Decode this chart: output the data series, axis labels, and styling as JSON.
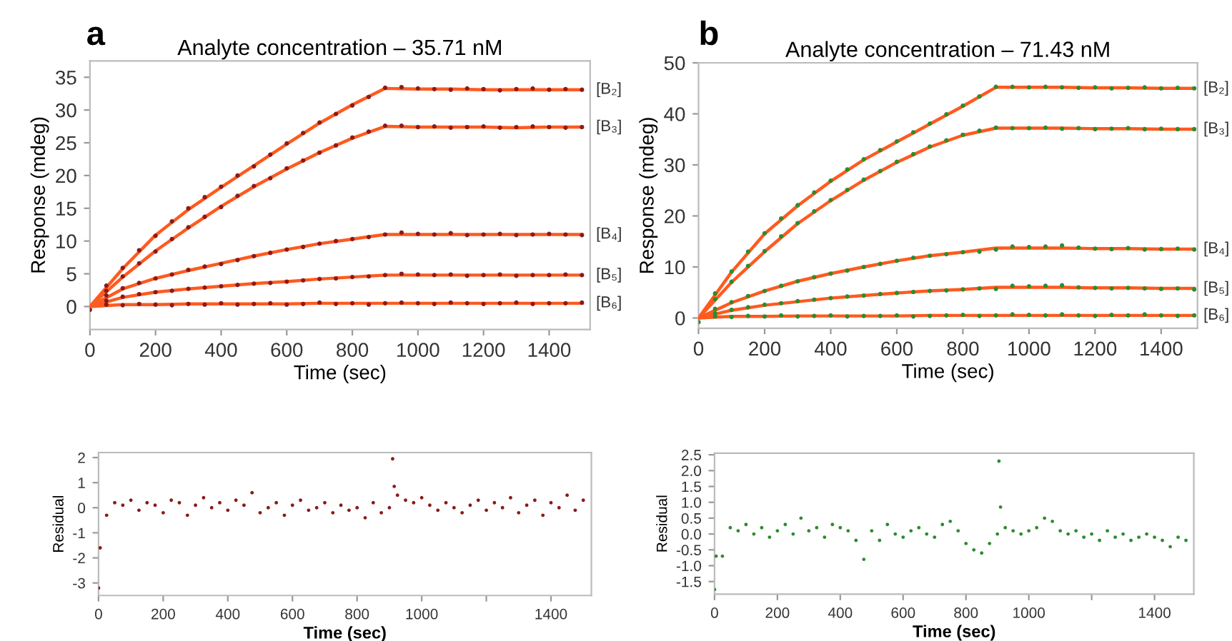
{
  "chart_data": [
    {
      "type": "line",
      "title": "Analyte concentration – 35.71 nM",
      "xlabel": "Time (sec)",
      "ylabel": "Response (mdeg)",
      "annotations": [
        "a"
      ],
      "xlim": [
        0,
        1525
      ],
      "ylim": [
        -3.5,
        37.5
      ],
      "xticks": [
        0,
        200,
        400,
        600,
        800,
        1000,
        1200,
        1400
      ],
      "yticks": [
        0,
        5,
        10,
        15,
        20,
        25,
        30,
        35
      ],
      "series": [
        {
          "type": "scatter",
          "color": "#8b1a1a",
          "x": [
            50,
            100,
            150,
            200,
            250,
            300,
            350,
            400,
            450,
            500,
            550,
            600,
            650,
            700,
            750,
            800,
            850,
            900,
            950,
            1000,
            1050,
            1100,
            1150,
            1200,
            1250,
            1300,
            1350,
            1400,
            1450,
            1500
          ],
          "values": [
            3.2,
            5.9,
            8.6,
            10.8,
            13,
            15,
            16.7,
            18.3,
            20,
            21.4,
            23.2,
            24.9,
            26.5,
            28.1,
            29.4,
            30.7,
            32,
            33.4,
            33.5,
            33.3,
            33.2,
            33.1,
            33.3,
            33.2,
            33.0,
            33.2,
            33.3,
            33.1,
            33.2,
            33.1
          ]
        },
        {
          "type": "scatter",
          "color": "#8b1a1a",
          "x": [
            50,
            100,
            150,
            200,
            250,
            300,
            350,
            400,
            450,
            500,
            550,
            600,
            650,
            700,
            750,
            800,
            850,
            900,
            950,
            1000,
            1050,
            1100,
            1150,
            1200,
            1250,
            1300,
            1350,
            1400,
            1450,
            1500
          ],
          "values": [
            2.4,
            4.6,
            6.6,
            8.4,
            10.3,
            12.1,
            13.7,
            15.2,
            16.9,
            18.4,
            19.6,
            21.1,
            22.3,
            23.5,
            24.6,
            25.8,
            26.7,
            27.6,
            27.6,
            27.4,
            27.5,
            27.3,
            27.4,
            27.5,
            27.3,
            27.4,
            27.5,
            27.4,
            27.3,
            27.4
          ]
        },
        {
          "type": "scatter",
          "color": "#8b1a1a",
          "x": [
            50,
            100,
            150,
            200,
            250,
            300,
            350,
            400,
            450,
            500,
            550,
            600,
            650,
            700,
            750,
            800,
            850,
            900,
            950,
            1000,
            1050,
            1100,
            1150,
            1200,
            1250,
            1300,
            1350,
            1400,
            1450,
            1500
          ],
          "values": [
            1.7,
            2.8,
            3.6,
            4.3,
            4.9,
            5.6,
            6.1,
            6.5,
            7.1,
            7.7,
            8.2,
            8.7,
            9.1,
            9.6,
            10.0,
            10.3,
            10.6,
            11.0,
            11.3,
            11.1,
            11.0,
            11.2,
            10.9,
            11.0,
            11.1,
            10.9,
            11.0,
            11.1,
            11.0,
            10.9
          ]
        },
        {
          "type": "scatter",
          "color": "#8b1a1a",
          "x": [
            50,
            100,
            150,
            200,
            250,
            300,
            350,
            400,
            450,
            500,
            550,
            600,
            650,
            700,
            750,
            800,
            850,
            900,
            950,
            1000,
            1050,
            1100,
            1150,
            1200,
            1250,
            1300,
            1350,
            1400,
            1450,
            1500
          ],
          "values": [
            0.9,
            1.5,
            1.9,
            2.2,
            2.4,
            2.7,
            2.9,
            3.1,
            3.3,
            3.5,
            3.6,
            3.8,
            4.0,
            4.2,
            4.3,
            4.5,
            4.6,
            4.8,
            5.0,
            4.9,
            4.8,
            4.9,
            4.7,
            4.8,
            4.9,
            4.7,
            4.8,
            4.8,
            4.9,
            4.8
          ]
        },
        {
          "type": "scatter",
          "color": "#8b1a1a",
          "x": [
            0,
            50,
            100,
            150,
            200,
            250,
            300,
            350,
            400,
            450,
            500,
            550,
            600,
            650,
            700,
            750,
            800,
            850,
            900,
            950,
            1000,
            1050,
            1100,
            1150,
            1200,
            1250,
            1300,
            1350,
            1400,
            1450,
            1500
          ],
          "values": [
            -0.5,
            0.3,
            0.2,
            0.4,
            0.3,
            0.2,
            0.4,
            0.3,
            0.5,
            0.3,
            0.4,
            0.5,
            0.3,
            0.4,
            0.6,
            0.4,
            0.5,
            0.3,
            0.5,
            0.6,
            0.5,
            0.4,
            0.6,
            0.5,
            0.4,
            0.5,
            0.6,
            0.4,
            0.5,
            0.5,
            0.6
          ]
        },
        {
          "type": "line",
          "name": "[B₂]",
          "color": "#ff5a1f",
          "x": [
            0,
            100,
            200,
            300,
            400,
            500,
            600,
            700,
            800,
            900,
            1000,
            1100,
            1200,
            1300,
            1400,
            1500
          ],
          "values": [
            0,
            5.8,
            10.9,
            14.8,
            18.2,
            21.5,
            24.8,
            28,
            30.8,
            33.3,
            33.2,
            33.2,
            33.1,
            33.1,
            33.1,
            33.1
          ]
        },
        {
          "type": "line",
          "name": "[B₃]",
          "color": "#ff5a1f",
          "x": [
            0,
            100,
            200,
            300,
            400,
            500,
            600,
            700,
            800,
            900,
            1000,
            1100,
            1200,
            1300,
            1400,
            1500
          ],
          "values": [
            0,
            4.5,
            8.5,
            12,
            15.3,
            18.3,
            21,
            23.5,
            25.7,
            27.5,
            27.4,
            27.4,
            27.4,
            27.3,
            27.4,
            27.4
          ]
        },
        {
          "type": "line",
          "name": "[B₄]",
          "color": "#ff5a1f",
          "x": [
            0,
            100,
            200,
            300,
            400,
            500,
            600,
            700,
            800,
            900,
            1000,
            1100,
            1200,
            1300,
            1400,
            1500
          ],
          "values": [
            0,
            2.7,
            4.3,
            5.5,
            6.6,
            7.7,
            8.7,
            9.6,
            10.3,
            11,
            11,
            11,
            11,
            11,
            11,
            11
          ]
        },
        {
          "type": "line",
          "name": "[B₅]",
          "color": "#ff5a1f",
          "x": [
            0,
            100,
            200,
            300,
            400,
            500,
            600,
            700,
            800,
            900,
            1000,
            1100,
            1200,
            1300,
            1400,
            1500
          ],
          "values": [
            0,
            1.4,
            2.2,
            2.7,
            3.1,
            3.5,
            3.8,
            4.2,
            4.5,
            4.8,
            4.8,
            4.8,
            4.8,
            4.8,
            4.8,
            4.8
          ]
        },
        {
          "type": "line",
          "name": "[B₆]",
          "color": "#ff5a1f",
          "x": [
            0,
            100,
            200,
            300,
            400,
            500,
            600,
            700,
            800,
            900,
            1000,
            1100,
            1200,
            1300,
            1400,
            1500
          ],
          "values": [
            0,
            0.3,
            0.3,
            0.4,
            0.4,
            0.4,
            0.4,
            0.5,
            0.5,
            0.5,
            0.5,
            0.5,
            0.5,
            0.5,
            0.5,
            0.5
          ]
        }
      ]
    },
    {
      "type": "line",
      "title": "Analyte concentration – 71.43 nM",
      "xlabel": "Time (sec)",
      "ylabel": "Response (mdeg)",
      "annotations": [
        "b"
      ],
      "xlim": [
        0,
        1510
      ],
      "ylim": [
        -2,
        50
      ],
      "xticks": [
        0,
        200,
        400,
        600,
        800,
        1000,
        1200,
        1400
      ],
      "yticks": [
        0,
        10,
        20,
        30,
        40,
        50
      ],
      "series": [
        {
          "type": "scatter",
          "color": "#2e8b2e",
          "x": [
            50,
            100,
            150,
            200,
            250,
            300,
            350,
            400,
            450,
            500,
            550,
            600,
            650,
            700,
            750,
            800,
            850,
            900,
            950,
            1000,
            1050,
            1100,
            1150,
            1200,
            1250,
            1300,
            1350,
            1400,
            1450,
            1500
          ],
          "values": [
            4.8,
            9.1,
            13,
            16.6,
            19.5,
            22.1,
            24.6,
            26.9,
            29.1,
            31.1,
            32.9,
            34.6,
            36.4,
            38.1,
            39.9,
            41.6,
            43.4,
            45.3,
            45.3,
            45.2,
            45.3,
            45.2,
            45.1,
            45.2,
            45.0,
            45.1,
            45.2,
            45.0,
            45.1,
            45.0
          ]
        },
        {
          "type": "scatter",
          "color": "#2e8b2e",
          "x": [
            50,
            100,
            150,
            200,
            250,
            300,
            350,
            400,
            450,
            500,
            550,
            600,
            650,
            700,
            750,
            800,
            850,
            900,
            950,
            1000,
            1050,
            1100,
            1150,
            1200,
            1250,
            1300,
            1350,
            1400,
            1450,
            1500
          ],
          "values": [
            3.7,
            7.1,
            10.2,
            13.1,
            16,
            18.6,
            20.9,
            23.1,
            25.1,
            27.1,
            28.8,
            30.6,
            32.1,
            33.6,
            34.8,
            35.9,
            36.7,
            37.3,
            37.2,
            37.2,
            37.3,
            37.1,
            37.2,
            37.0,
            37.1,
            37.2,
            37.0,
            37.1,
            37.0,
            37.0
          ]
        },
        {
          "type": "scatter",
          "color": "#2e8b2e",
          "x": [
            50,
            100,
            150,
            200,
            250,
            300,
            350,
            400,
            450,
            500,
            550,
            600,
            650,
            700,
            750,
            800,
            850,
            900,
            950,
            1000,
            1050,
            1100,
            1150,
            1200,
            1250,
            1300,
            1350,
            1400,
            1450,
            1500
          ],
          "values": [
            1.8,
            3.1,
            4.3,
            5.3,
            6.3,
            7.2,
            8.0,
            8.7,
            9.3,
            10.0,
            10.6,
            11.2,
            11.8,
            12.2,
            12.5,
            12.9,
            13.0,
            13.4,
            14.0,
            13.9,
            14.0,
            14.2,
            13.8,
            13.6,
            13.5,
            13.7,
            13.4,
            13.5,
            13.6,
            13.4
          ]
        },
        {
          "type": "scatter",
          "color": "#2e8b2e",
          "x": [
            50,
            100,
            150,
            200,
            250,
            300,
            350,
            400,
            450,
            500,
            550,
            600,
            650,
            700,
            750,
            800,
            850,
            900,
            950,
            1000,
            1050,
            1100,
            1150,
            1200,
            1250,
            1300,
            1350,
            1400,
            1450,
            1500
          ],
          "values": [
            0.9,
            1.6,
            2.1,
            2.6,
            2.9,
            3.3,
            3.6,
            3.9,
            4.2,
            4.4,
            4.7,
            4.9,
            5.1,
            5.3,
            5.4,
            5.6,
            5.8,
            5.7,
            6.3,
            6.2,
            6.3,
            6.4,
            6.0,
            5.9,
            5.8,
            5.9,
            5.8,
            5.7,
            5.8,
            5.6
          ]
        },
        {
          "type": "scatter",
          "color": "#2e8b2e",
          "x": [
            0,
            50,
            100,
            150,
            200,
            250,
            300,
            350,
            400,
            450,
            500,
            550,
            600,
            650,
            700,
            750,
            800,
            850,
            900,
            950,
            1000,
            1050,
            1100,
            1150,
            1200,
            1250,
            1300,
            1350,
            1400,
            1450,
            1500
          ],
          "values": [
            -0.8,
            0.3,
            0.2,
            0.4,
            0.3,
            0.5,
            0.3,
            0.4,
            0.5,
            0.3,
            0.4,
            0.4,
            0.5,
            0.3,
            0.4,
            0.5,
            0.6,
            0.4,
            0.5,
            0.7,
            0.6,
            0.5,
            0.7,
            0.5,
            0.4,
            0.6,
            0.5,
            0.7,
            0.5,
            0.4,
            0.5
          ]
        },
        {
          "type": "line",
          "name": "[B₂]",
          "color": "#ff5a1f",
          "x": [
            0,
            100,
            200,
            300,
            400,
            500,
            600,
            700,
            800,
            900,
            1000,
            1100,
            1200,
            1300,
            1400,
            1500
          ],
          "values": [
            0,
            9,
            16.5,
            22,
            26.8,
            31,
            34.5,
            38,
            41.5,
            45.2,
            45.2,
            45.2,
            45.1,
            45.1,
            45,
            45
          ]
        },
        {
          "type": "line",
          "name": "[B₃]",
          "color": "#ff5a1f",
          "x": [
            0,
            100,
            200,
            300,
            400,
            500,
            600,
            700,
            800,
            900,
            1000,
            1100,
            1200,
            1300,
            1400,
            1500
          ],
          "values": [
            0,
            7,
            13,
            18.5,
            23,
            27,
            30.5,
            33.5,
            35.8,
            37.2,
            37.2,
            37.2,
            37.1,
            37.1,
            37,
            37
          ]
        },
        {
          "type": "line",
          "name": "[B₄]",
          "color": "#ff5a1f",
          "x": [
            0,
            100,
            200,
            300,
            400,
            500,
            600,
            700,
            800,
            900,
            1000,
            1100,
            1200,
            1300,
            1400,
            1500
          ],
          "values": [
            0,
            3,
            5.3,
            7.2,
            8.7,
            10,
            11.2,
            12.2,
            12.9,
            13.7,
            13.7,
            13.7,
            13.6,
            13.6,
            13.5,
            13.5
          ]
        },
        {
          "type": "line",
          "name": "[B₅]",
          "color": "#ff5a1f",
          "x": [
            0,
            100,
            200,
            300,
            400,
            500,
            600,
            700,
            800,
            900,
            1000,
            1100,
            1200,
            1300,
            1400,
            1500
          ],
          "values": [
            0,
            1.5,
            2.5,
            3.2,
            3.9,
            4.4,
            4.9,
            5.3,
            5.6,
            6,
            6,
            6,
            5.9,
            5.9,
            5.8,
            5.8
          ]
        },
        {
          "type": "line",
          "name": "[B₆]",
          "color": "#ff5a1f",
          "x": [
            0,
            100,
            200,
            300,
            400,
            500,
            600,
            700,
            800,
            900,
            1000,
            1100,
            1200,
            1300,
            1400,
            1500
          ],
          "values": [
            0,
            0.3,
            0.3,
            0.4,
            0.4,
            0.4,
            0.4,
            0.5,
            0.5,
            0.5,
            0.5,
            0.5,
            0.5,
            0.5,
            0.5,
            0.5
          ]
        }
      ]
    },
    {
      "type": "scatter",
      "xlabel": "Time (sec)",
      "ylabel": "Residual",
      "xlim": [
        0,
        1525
      ],
      "ylim": [
        -3.5,
        2.2
      ],
      "xticks": [
        0,
        200,
        400,
        600,
        800,
        1000,
        {
          "value": 1200,
          "label": null
        },
        1400
      ],
      "yticks": [
        -3,
        -2,
        -1,
        0,
        1,
        2
      ],
      "series": [
        {
          "color": "#8b1a1a",
          "x": [
            0,
            5,
            25,
            50,
            75,
            100,
            125,
            150,
            175,
            200,
            225,
            250,
            275,
            300,
            325,
            350,
            375,
            400,
            425,
            450,
            475,
            500,
            525,
            550,
            575,
            600,
            625,
            650,
            675,
            700,
            725,
            750,
            775,
            800,
            825,
            850,
            875,
            900,
            910,
            915,
            925,
            950,
            975,
            1000,
            1025,
            1050,
            1075,
            1100,
            1125,
            1150,
            1175,
            1200,
            1225,
            1250,
            1275,
            1300,
            1325,
            1350,
            1375,
            1400,
            1425,
            1450,
            1475,
            1500
          ],
          "values": [
            -3.2,
            -1.6,
            -0.3,
            0.2,
            0.1,
            0.3,
            -0.1,
            0.2,
            0.1,
            -0.2,
            0.3,
            0.2,
            -0.3,
            0.1,
            0.4,
            0.0,
            0.2,
            -0.1,
            0.3,
            0.1,
            0.6,
            -0.2,
            0.0,
            0.2,
            -0.3,
            0.1,
            0.3,
            -0.1,
            0.0,
            0.2,
            -0.2,
            0.1,
            -0.1,
            0.0,
            -0.4,
            0.2,
            -0.2,
            0.0,
            1.95,
            0.85,
            0.5,
            0.3,
            0.2,
            0.4,
            0.1,
            -0.1,
            0.2,
            0.0,
            -0.2,
            0.1,
            0.3,
            -0.1,
            0.2,
            0.0,
            0.4,
            -0.2,
            0.1,
            0.3,
            -0.3,
            0.2,
            0.0,
            0.5,
            -0.1,
            0.3
          ]
        }
      ]
    },
    {
      "type": "scatter",
      "xlabel": "Time (sec)",
      "ylabel": "Residual",
      "xlim": [
        0,
        1525
      ],
      "ylim": [
        -1.9,
        2.55
      ],
      "xticks": [
        0,
        200,
        400,
        600,
        800,
        1000,
        {
          "value": 1200,
          "label": null
        },
        1400
      ],
      "yticks": [
        {
          "value": -1.5,
          "label": "-1.5"
        },
        {
          "value": -1.0,
          "label": "-1.0"
        },
        {
          "value": -0.5,
          "label": "-0.5"
        },
        {
          "value": 0,
          "label": "0.0"
        },
        {
          "value": 0.5,
          "label": "0.5"
        },
        {
          "value": 1.0,
          "label": "1.0"
        },
        {
          "value": 1.5,
          "label": "1.5"
        },
        {
          "value": 2.0,
          "label": "2.0"
        },
        {
          "value": 2.5,
          "label": "2.5"
        }
      ],
      "series": [
        {
          "color": "#2e8b2e",
          "x": [
            0,
            5,
            25,
            50,
            75,
            100,
            125,
            150,
            175,
            200,
            225,
            250,
            275,
            300,
            325,
            350,
            375,
            400,
            425,
            450,
            475,
            500,
            525,
            550,
            575,
            600,
            625,
            650,
            675,
            700,
            725,
            750,
            775,
            800,
            825,
            850,
            875,
            900,
            905,
            910,
            925,
            950,
            975,
            1000,
            1025,
            1050,
            1075,
            1100,
            1125,
            1150,
            1175,
            1200,
            1225,
            1250,
            1275,
            1300,
            1325,
            1350,
            1375,
            1400,
            1425,
            1450,
            1475,
            1500
          ],
          "values": [
            -1.75,
            -0.7,
            -0.7,
            0.2,
            0.1,
            0.3,
            0.0,
            0.2,
            -0.1,
            0.1,
            0.3,
            0.0,
            0.5,
            0.1,
            0.2,
            -0.1,
            0.3,
            0.2,
            0.1,
            -0.2,
            -0.8,
            0.1,
            -0.2,
            0.3,
            0.0,
            -0.1,
            0.1,
            0.2,
            0.0,
            -0.1,
            0.3,
            0.4,
            0.1,
            -0.3,
            -0.5,
            -0.6,
            -0.3,
            0.0,
            2.3,
            0.85,
            0.2,
            0.1,
            0.0,
            0.1,
            0.2,
            0.5,
            0.4,
            0.1,
            0.0,
            0.1,
            -0.1,
            0.0,
            -0.2,
            0.1,
            -0.1,
            0.0,
            -0.2,
            -0.1,
            0.0,
            -0.1,
            -0.2,
            -0.4,
            -0.1,
            -0.2
          ]
        }
      ]
    }
  ]
}
